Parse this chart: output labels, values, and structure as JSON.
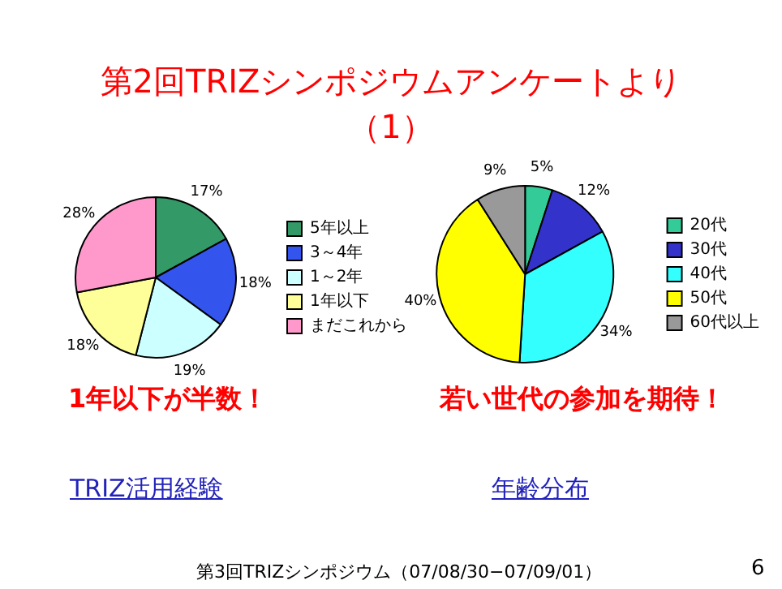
{
  "chart_data": [
    {
      "type": "pie",
      "title": "第2回TRIZシンポジウムアンケートより（1）",
      "categories": [
        "5年以上",
        "3～4年",
        "1～2年",
        "1年以下",
        "まだこれから"
      ],
      "values": [
        17,
        18,
        19,
        18,
        28
      ],
      "colors": [
        "#339966",
        "#3355ee",
        "#ccffff",
        "#ffff99",
        "#ff99cc"
      ],
      "value_labels": [
        "17%",
        "18%",
        "19%",
        "18%",
        "28%"
      ],
      "legend": "right",
      "annotations": [
        "1年以下が半数！",
        "TRIZ活用経験"
      ]
    },
    {
      "type": "pie",
      "categories": [
        "20代",
        "30代",
        "40代",
        "50代",
        "60代以上"
      ],
      "values": [
        5,
        12,
        34,
        40,
        9
      ],
      "colors": [
        "#33cc99",
        "#3333cc",
        "#33ffff",
        "#ffff00",
        "#999999"
      ],
      "value_labels": [
        "5%",
        "12%",
        "34%",
        "40%",
        "9%"
      ],
      "legend": "right",
      "annotations": [
        "若い世代の参加を期待！",
        "年齢分布",
        "第3回TRIZシンポジウム（07/08/30−07/09/01）",
        "6"
      ]
    }
  ]
}
